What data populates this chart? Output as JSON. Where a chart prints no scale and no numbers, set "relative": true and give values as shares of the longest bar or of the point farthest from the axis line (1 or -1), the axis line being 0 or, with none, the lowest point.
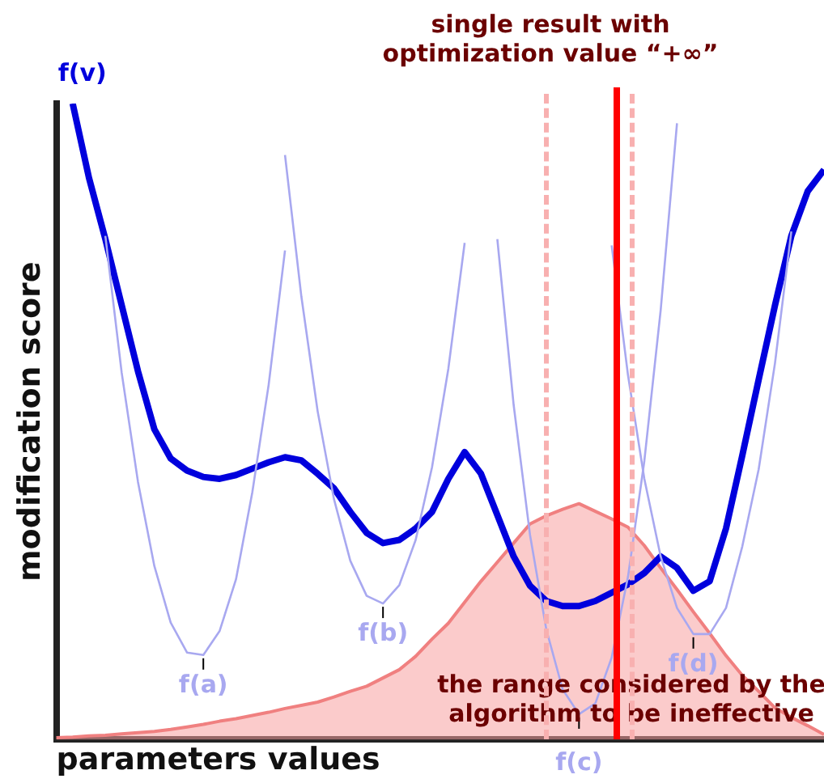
{
  "chart_data": {
    "type": "line",
    "relative": true,
    "xlabel": "parameters values",
    "ylabel": "modification score",
    "categories": [
      null,
      null,
      null,
      null,
      null,
      null,
      null,
      null,
      null,
      null,
      null,
      null,
      null,
      null,
      null,
      null,
      null,
      null,
      null,
      null,
      null,
      null,
      null,
      null,
      null,
      null,
      null,
      null,
      null,
      null,
      null,
      null,
      null,
      null,
      null,
      null,
      null,
      null,
      null,
      null,
      null,
      null,
      null,
      null,
      null,
      null,
      null,
      null
    ],
    "series": [
      {
        "type": "area",
        "color": "#f08080",
        "values": [
          0.003,
          0.004,
          0.006,
          0.007,
          0.009,
          0.011,
          0.013,
          0.016,
          0.02,
          0.024,
          0.029,
          0.033,
          0.038,
          0.043,
          0.049,
          0.054,
          0.059,
          0.067,
          0.076,
          0.084,
          0.097,
          0.11,
          0.131,
          0.158,
          0.183,
          0.216,
          0.249,
          0.279,
          0.309,
          0.339,
          0.352,
          0.362,
          0.371,
          0.359,
          0.347,
          0.334,
          0.305,
          0.27,
          0.236,
          0.201,
          0.167,
          0.132,
          0.101,
          0.076,
          0.05,
          0.035,
          0.022,
          0.008
        ]
      },
      {
        "name": "f(a)",
        "color": "#a8a8f0",
        "values": [
          null,
          null,
          null,
          0.792,
          0.577,
          0.405,
          0.273,
          0.184,
          0.137,
          0.133,
          0.171,
          0.252,
          0.389,
          0.558,
          0.769,
          null,
          null,
          null,
          null,
          null,
          null,
          null,
          null,
          null,
          null,
          null,
          null,
          null,
          null,
          null,
          null,
          null,
          null,
          null,
          null,
          null,
          null,
          null,
          null,
          null,
          null,
          null,
          null,
          null,
          null,
          null,
          null,
          null
        ]
      },
      {
        "name": "f(b)",
        "color": "#a8a8f0",
        "values": [
          null,
          null,
          null,
          null,
          null,
          null,
          null,
          null,
          null,
          null,
          null,
          null,
          null,
          null,
          0.919,
          0.697,
          0.516,
          0.378,
          0.281,
          0.226,
          0.214,
          0.243,
          0.314,
          0.428,
          0.583,
          0.781,
          null,
          null,
          null,
          null,
          null,
          null,
          null,
          null,
          null,
          null,
          null,
          null,
          null,
          null,
          null,
          null,
          null,
          null,
          null,
          null,
          null,
          null
        ]
      },
      {
        "name": "f(c)",
        "color": "#a8a8f0",
        "values": [
          null,
          null,
          null,
          null,
          null,
          null,
          null,
          null,
          null,
          null,
          null,
          null,
          null,
          null,
          null,
          null,
          null,
          null,
          null,
          null,
          null,
          null,
          null,
          null,
          null,
          null,
          null,
          0.787,
          0.526,
          0.322,
          0.173,
          0.079,
          0.04,
          0.057,
          0.129,
          0.256,
          0.438,
          0.675,
          0.969,
          null,
          null,
          null,
          null,
          null,
          null,
          null,
          null,
          null
        ]
      },
      {
        "name": "f(d)",
        "color": "#a8a8f0",
        "values": [
          null,
          null,
          null,
          null,
          null,
          null,
          null,
          null,
          null,
          null,
          null,
          null,
          null,
          null,
          null,
          null,
          null,
          null,
          null,
          null,
          null,
          null,
          null,
          null,
          null,
          null,
          null,
          null,
          null,
          null,
          null,
          null,
          null,
          null,
          0.777,
          0.573,
          0.41,
          0.288,
          0.207,
          0.166,
          0.166,
          0.207,
          0.304,
          0.425,
          0.592,
          0.799,
          null,
          null
        ]
      },
      {
        "name": "f(v)",
        "color": "#0000dd",
        "values": [
          null,
          1.0,
          0.883,
          0.787,
          0.683,
          0.579,
          0.488,
          0.442,
          0.423,
          0.413,
          0.41,
          0.416,
          0.426,
          0.436,
          0.444,
          0.439,
          0.418,
          0.395,
          0.358,
          0.325,
          0.309,
          0.314,
          0.332,
          0.358,
          0.41,
          0.452,
          0.418,
          0.353,
          0.288,
          0.242,
          0.218,
          0.21,
          0.21,
          0.218,
          0.231,
          0.244,
          0.262,
          0.288,
          0.27,
          0.234,
          0.249,
          0.332,
          0.447,
          0.566,
          0.683,
          0.792,
          0.862,
          0.896
        ]
      }
    ],
    "annotations": [
      "single result with optimization value “+∞”",
      "the range considered by the algorithm to be ineffective"
    ]
  }
}
